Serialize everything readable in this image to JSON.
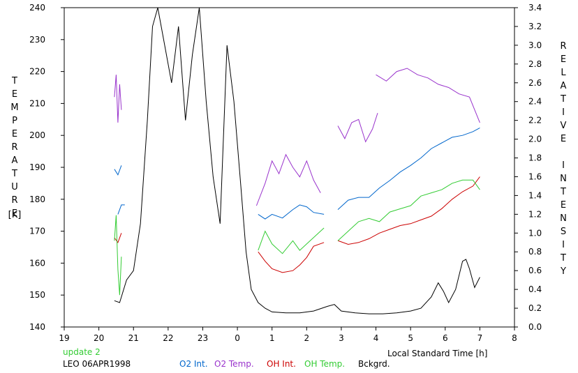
{
  "chart_data": {
    "type": "line",
    "xlabel": "Local Standard Time [h]",
    "ylabel_left": "TEMPERATURE",
    "ylabel_left_unit": "[K]",
    "ylabel_right": "RELATIVE INTENSITY",
    "x_ticks": [
      "19",
      "20",
      "21",
      "22",
      "23",
      "0",
      "1",
      "2",
      "3",
      "4",
      "5",
      "6",
      "7",
      "8"
    ],
    "xlim": [
      19,
      32
    ],
    "ylim_left": [
      140,
      240
    ],
    "ylim_right": [
      0.0,
      3.4
    ],
    "y_left_ticks": [
      140,
      150,
      160,
      170,
      180,
      190,
      200,
      210,
      220,
      230,
      240
    ],
    "y_right_ticks": [
      "0.0",
      "0.2",
      "0.4",
      "0.6",
      "0.8",
      "1.0",
      "1.2",
      "1.4",
      "1.6",
      "1.8",
      "2.0",
      "2.2",
      "2.4",
      "2.6",
      "2.8",
      "3.0",
      "3.2",
      "3.4"
    ],
    "grid": false,
    "legend_placement": "bottom",
    "annotation": "update 2",
    "station": "LEO 06APR1998",
    "series": [
      {
        "name": "O2 Int.",
        "axis": "right",
        "color": "#0066cc",
        "segments": [
          [
            [
              20.45,
              1.68
            ],
            [
              20.55,
              1.62
            ],
            [
              20.65,
              1.72
            ]
          ],
          [
            [
              20.55,
              1.2
            ],
            [
              20.65,
              1.3
            ],
            [
              20.75,
              1.3
            ]
          ],
          [
            [
              24.6,
              1.2
            ],
            [
              24.8,
              1.15
            ],
            [
              25.0,
              1.2
            ],
            [
              25.3,
              1.16
            ],
            [
              25.6,
              1.25
            ],
            [
              25.8,
              1.3
            ],
            [
              26.0,
              1.28
            ],
            [
              26.2,
              1.22
            ],
            [
              26.5,
              1.2
            ]
          ],
          [
            [
              26.9,
              1.25
            ],
            [
              27.2,
              1.35
            ],
            [
              27.5,
              1.38
            ],
            [
              27.8,
              1.38
            ],
            [
              28.1,
              1.48
            ],
            [
              28.4,
              1.56
            ],
            [
              28.7,
              1.65
            ],
            [
              29.0,
              1.72
            ],
            [
              29.3,
              1.8
            ],
            [
              29.6,
              1.9
            ],
            [
              29.9,
              1.96
            ],
            [
              30.2,
              2.02
            ],
            [
              30.5,
              2.04
            ],
            [
              30.8,
              2.08
            ],
            [
              31.0,
              2.12
            ]
          ]
        ]
      },
      {
        "name": "O2 Temp.",
        "axis": "left",
        "color": "#9933cc",
        "segments": [
          [
            [
              20.45,
              212
            ],
            [
              20.5,
              219
            ],
            [
              20.55,
              204
            ],
            [
              20.6,
              216
            ],
            [
              20.65,
              208
            ]
          ],
          [
            [
              24.55,
              178
            ],
            [
              24.8,
              185
            ],
            [
              25.0,
              192
            ],
            [
              25.2,
              188
            ],
            [
              25.4,
              194
            ],
            [
              25.6,
              190
            ],
            [
              25.8,
              187
            ],
            [
              26.0,
              192
            ],
            [
              26.2,
              186
            ],
            [
              26.4,
              182
            ]
          ],
          [
            [
              26.9,
              203
            ],
            [
              27.1,
              199
            ],
            [
              27.3,
              204
            ],
            [
              27.5,
              205
            ],
            [
              27.7,
              198
            ],
            [
              27.9,
              202
            ],
            [
              28.05,
              207
            ]
          ],
          [
            [
              28.0,
              219
            ],
            [
              28.3,
              217
            ],
            [
              28.6,
              220
            ],
            [
              28.9,
              221
            ],
            [
              29.2,
              219
            ],
            [
              29.5,
              218
            ],
            [
              29.8,
              216
            ],
            [
              30.1,
              215
            ],
            [
              30.4,
              213
            ],
            [
              30.7,
              212
            ],
            [
              31.0,
              204
            ]
          ]
        ]
      },
      {
        "name": "OH Int.",
        "axis": "right",
        "color": "#cc0000",
        "segments": [
          [
            [
              20.45,
              0.95
            ],
            [
              20.55,
              0.9
            ],
            [
              20.65,
              1.0
            ]
          ],
          [
            [
              24.6,
              0.8
            ],
            [
              24.8,
              0.7
            ],
            [
              25.0,
              0.62
            ],
            [
              25.3,
              0.58
            ],
            [
              25.6,
              0.6
            ],
            [
              25.8,
              0.66
            ],
            [
              26.0,
              0.74
            ],
            [
              26.2,
              0.86
            ],
            [
              26.5,
              0.9
            ]
          ],
          [
            [
              26.9,
              0.92
            ],
            [
              27.2,
              0.88
            ],
            [
              27.5,
              0.9
            ],
            [
              27.8,
              0.94
            ],
            [
              28.1,
              1.0
            ],
            [
              28.4,
              1.04
            ],
            [
              28.7,
              1.08
            ],
            [
              29.0,
              1.1
            ],
            [
              29.3,
              1.14
            ],
            [
              29.6,
              1.18
            ],
            [
              29.9,
              1.26
            ],
            [
              30.2,
              1.36
            ],
            [
              30.5,
              1.44
            ],
            [
              30.8,
              1.5
            ],
            [
              31.0,
              1.6
            ]
          ]
        ]
      },
      {
        "name": "OH Temp.",
        "axis": "left",
        "color": "#33cc33",
        "segments": [
          [
            [
              20.45,
              167
            ],
            [
              20.5,
              175
            ],
            [
              20.55,
              158
            ],
            [
              20.6,
              150
            ],
            [
              20.65,
              162
            ]
          ],
          [
            [
              24.6,
              164
            ],
            [
              24.8,
              170
            ],
            [
              25.0,
              166
            ],
            [
              25.3,
              163
            ],
            [
              25.6,
              167
            ],
            [
              25.8,
              164
            ],
            [
              26.0,
              166
            ],
            [
              26.2,
              168
            ],
            [
              26.5,
              171
            ]
          ],
          [
            [
              26.9,
              167
            ],
            [
              27.2,
              170
            ],
            [
              27.5,
              173
            ],
            [
              27.8,
              174
            ],
            [
              28.1,
              173
            ],
            [
              28.4,
              176
            ],
            [
              28.7,
              177
            ],
            [
              29.0,
              178
            ],
            [
              29.3,
              181
            ],
            [
              29.6,
              182
            ],
            [
              29.9,
              183
            ],
            [
              30.2,
              185
            ],
            [
              30.5,
              186
            ],
            [
              30.8,
              186
            ],
            [
              31.0,
              183
            ]
          ]
        ]
      },
      {
        "name": "Bckgrd.",
        "axis": "right",
        "color": "#000000",
        "segments": [
          [
            [
              20.45,
              0.28
            ],
            [
              20.6,
              0.26
            ],
            [
              20.8,
              0.5
            ],
            [
              21.0,
              0.6
            ],
            [
              21.2,
              1.1
            ],
            [
              21.4,
              2.2
            ],
            [
              21.55,
              3.2
            ],
            [
              21.7,
              3.6
            ],
            [
              21.9,
              3.0
            ],
            [
              22.1,
              2.6
            ],
            [
              22.3,
              3.2
            ],
            [
              22.5,
              2.2
            ],
            [
              22.7,
              2.9
            ],
            [
              22.9,
              3.5
            ],
            [
              23.1,
              2.4
            ],
            [
              23.3,
              1.6
            ],
            [
              23.5,
              1.1
            ],
            [
              23.7,
              3.0
            ],
            [
              23.9,
              2.4
            ],
            [
              24.1,
              1.5
            ],
            [
              24.25,
              0.8
            ],
            [
              24.4,
              0.4
            ],
            [
              24.6,
              0.26
            ],
            [
              24.8,
              0.2
            ],
            [
              25.0,
              0.16
            ],
            [
              25.4,
              0.15
            ],
            [
              25.8,
              0.15
            ],
            [
              26.2,
              0.17
            ],
            [
              26.6,
              0.22
            ],
            [
              26.8,
              0.24
            ],
            [
              27.0,
              0.17
            ],
            [
              27.4,
              0.15
            ],
            [
              27.8,
              0.14
            ],
            [
              28.2,
              0.14
            ],
            [
              28.6,
              0.15
            ],
            [
              29.0,
              0.17
            ],
            [
              29.3,
              0.2
            ],
            [
              29.6,
              0.32
            ],
            [
              29.8,
              0.47
            ],
            [
              29.95,
              0.38
            ],
            [
              30.1,
              0.26
            ],
            [
              30.3,
              0.4
            ],
            [
              30.5,
              0.7
            ],
            [
              30.6,
              0.72
            ],
            [
              30.7,
              0.62
            ],
            [
              30.85,
              0.42
            ],
            [
              31.0,
              0.53
            ]
          ]
        ]
      }
    ]
  }
}
